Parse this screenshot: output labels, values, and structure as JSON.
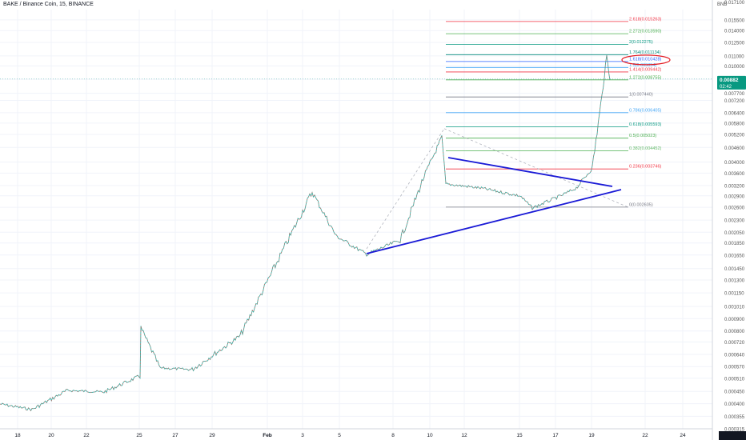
{
  "header": {
    "title": "BAKE / Binance Coin, 15, BINANCE",
    "unit": "BNB",
    "top_label": "0.017100"
  },
  "price_badge": {
    "value": "0.00882",
    "countdown": "02:42"
  },
  "chart_data": {
    "type": "line",
    "title": "BAKE / Binance Coin, 15, BINANCE",
    "y_scale": "log",
    "ylim": [
      0.000315,
      0.0171
    ],
    "y_ticks": [
      "0.015500",
      "0.014000",
      "0.012500",
      "0.011000",
      "0.010000",
      "0.008800",
      "0.007700",
      "0.007200",
      "0.006400",
      "0.005800",
      "0.005200",
      "0.004600",
      "0.004000",
      "0.003600",
      "0.003200",
      "0.002900",
      "0.002600",
      "0.002300",
      "0.002050",
      "0.001850",
      "0.001650",
      "0.001450",
      "0.001300",
      "0.001150",
      "0.001010",
      "0.000900",
      "0.000800",
      "0.000720",
      "0.000640",
      "0.000570",
      "0.000510",
      "0.000450",
      "0.000400",
      "0.000355",
      "0.000315"
    ],
    "x_ticks": [
      "18",
      "20",
      "22",
      "25",
      "27",
      "29",
      "Feb",
      "3",
      "5",
      "8",
      "10",
      "12",
      "15",
      "17",
      "19",
      "22",
      "24"
    ],
    "grid": true,
    "series": [
      {
        "x": [
          "18",
          "20",
          "22",
          "25",
          "27",
          "29",
          "Feb",
          "3",
          "5",
          "8",
          "10",
          "12",
          "15",
          "17",
          "19"
        ],
        "values": [
          0.000365,
          0.000355,
          0.00045,
          0.00065,
          0.00057,
          0.00078,
          0.0012,
          0.0032,
          0.0022,
          0.00205,
          0.0052,
          0.0036,
          0.0029,
          0.0032,
          0.0089
        ]
      }
    ],
    "fib_levels": [
      {
        "label": "2.618(0.015263)",
        "value": 0.015263,
        "color": "#f23645"
      },
      {
        "label": "2.272(0.013590)",
        "value": 0.01359,
        "color": "#4caf50"
      },
      {
        "label": "2(0.012275)",
        "value": 0.012275,
        "color": "#089981"
      },
      {
        "label": "1.764(0.011134)",
        "value": 0.011134,
        "color": "#00897b"
      },
      {
        "label": "1.618(0.010428)",
        "value": 0.010428,
        "color": "#2962ff"
      },
      {
        "label": "1.5(0.009854)",
        "value": 0.009854,
        "color": "#42a5f5"
      },
      {
        "label": "1.414(0.009442)",
        "value": 0.009442,
        "color": "#f23645"
      },
      {
        "label": "1.272(0.008755)",
        "value": 0.008755,
        "color": "#4caf50"
      },
      {
        "label": "1(0.007440)",
        "value": 0.00744,
        "color": "#787b86"
      },
      {
        "label": "0.786(0.006405)",
        "value": 0.006405,
        "color": "#42a5f5"
      },
      {
        "label": "0.618(0.005593)",
        "value": 0.005593,
        "color": "#089981"
      },
      {
        "label": "0.5(0.005023)",
        "value": 0.005023,
        "color": "#4caf50"
      },
      {
        "label": "0.382(0.004452)",
        "value": 0.004452,
        "color": "#66bb6a"
      },
      {
        "label": "0.236(0.003746)",
        "value": 0.003746,
        "color": "#f23645"
      },
      {
        "label": "0(0.002605)",
        "value": 0.002605,
        "color": "#787b86"
      }
    ]
  }
}
